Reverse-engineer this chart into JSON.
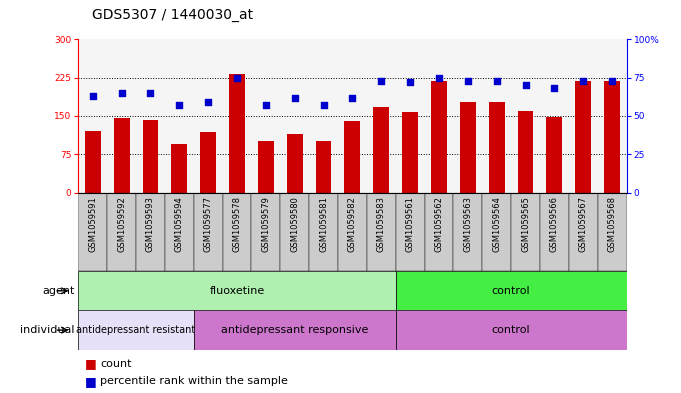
{
  "title": "GDS5307 / 1440030_at",
  "samples": [
    "GSM1059591",
    "GSM1059592",
    "GSM1059593",
    "GSM1059594",
    "GSM1059577",
    "GSM1059578",
    "GSM1059579",
    "GSM1059580",
    "GSM1059581",
    "GSM1059582",
    "GSM1059583",
    "GSM1059561",
    "GSM1059562",
    "GSM1059563",
    "GSM1059564",
    "GSM1059565",
    "GSM1059566",
    "GSM1059567",
    "GSM1059568"
  ],
  "counts": [
    120,
    145,
    143,
    95,
    118,
    232,
    100,
    115,
    100,
    140,
    168,
    158,
    218,
    178,
    178,
    160,
    148,
    218,
    218
  ],
  "percentiles": [
    63,
    65,
    65,
    57,
    59,
    75,
    57,
    62,
    57,
    62,
    73,
    72,
    75,
    73,
    73,
    70,
    68,
    73,
    73
  ],
  "ylim_left": [
    0,
    300
  ],
  "ylim_right": [
    0,
    100
  ],
  "yticks_left": [
    0,
    75,
    150,
    225,
    300
  ],
  "yticks_right": [
    0,
    25,
    50,
    75,
    100
  ],
  "bar_color": "#cc0000",
  "dot_color": "#0000cc",
  "agent_groups": [
    {
      "label": "fluoxetine",
      "start": 0,
      "end": 10,
      "color": "#b0f0b0"
    },
    {
      "label": "control",
      "start": 11,
      "end": 18,
      "color": "#44ee44"
    }
  ],
  "individual_groups": [
    {
      "label": "antidepressant resistant",
      "start": 0,
      "end": 3,
      "color": "#e8e0f8"
    },
    {
      "label": "antidepressant responsive",
      "start": 4,
      "end": 10,
      "color": "#dd88dd"
    },
    {
      "label": "control",
      "start": 11,
      "end": 18,
      "color": "#dd88dd"
    }
  ],
  "legend_count_label": "count",
  "legend_pct_label": "percentile rank within the sample",
  "xlabel_agent": "agent",
  "xlabel_individual": "individual",
  "title_fontsize": 10,
  "tick_fontsize": 6.5,
  "label_fontsize": 8,
  "annot_fontsize": 7
}
